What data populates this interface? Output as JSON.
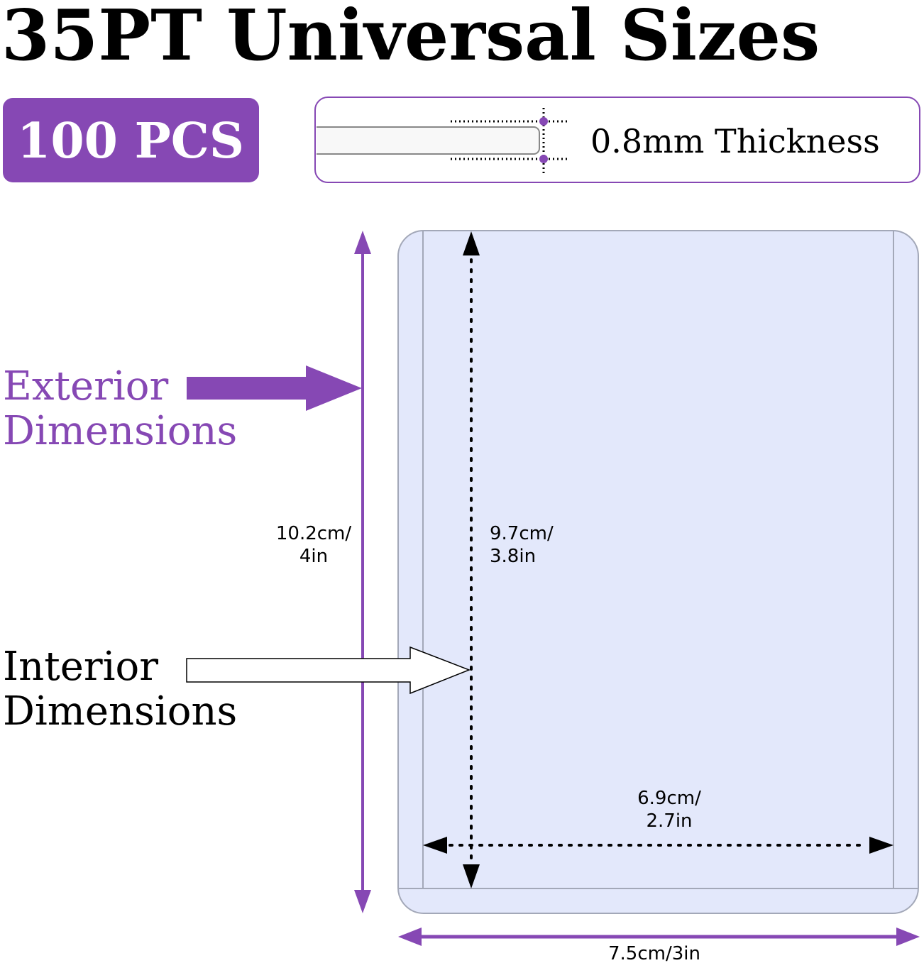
{
  "title": "35PT Universal Sizes",
  "badge": {
    "label": "100 PCS"
  },
  "thickness": {
    "label": "0.8mm Thickness"
  },
  "labels": {
    "exterior_line1": "Exterior",
    "exterior_line2": "Dimensions",
    "interior_line1": "Interior",
    "interior_line2": "Dimensions"
  },
  "dimensions": {
    "exterior_height_line1": "10.2cm/",
    "exterior_height_line2": "4in",
    "interior_height_line1": "9.7cm/",
    "interior_height_line2": "3.8in",
    "interior_width_line1": "6.9cm/",
    "interior_width_line2": "2.7in",
    "exterior_width": "7.5cm/3in"
  },
  "colors": {
    "accent": "#8648B4",
    "card_fill": "#E3E8FB",
    "card_stroke": "#A3A8B8"
  }
}
